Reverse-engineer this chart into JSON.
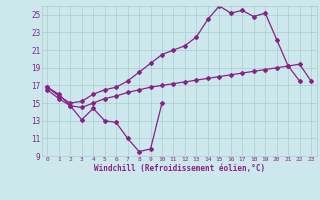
{
  "xlabel": "Windchill (Refroidissement éolien,°C)",
  "bg_color": "#cce8ec",
  "line_color": "#882288",
  "grid_color": "#aacccc",
  "xlim": [
    -0.5,
    23.5
  ],
  "ylim": [
    9,
    26
  ],
  "yticks": [
    9,
    11,
    13,
    15,
    17,
    19,
    21,
    23,
    25
  ],
  "xticks": [
    0,
    1,
    2,
    3,
    4,
    5,
    6,
    7,
    8,
    9,
    10,
    11,
    12,
    13,
    14,
    15,
    16,
    17,
    18,
    19,
    20,
    21,
    22,
    23
  ],
  "line1_x": [
    0,
    1,
    2,
    3,
    4,
    5,
    6,
    7,
    8,
    9,
    10
  ],
  "line1_y": [
    16.8,
    16.0,
    14.7,
    13.1,
    14.4,
    13.0,
    12.8,
    11.0,
    9.5,
    9.8,
    15.0
  ],
  "line2_x": [
    0,
    1,
    2,
    3,
    4,
    5,
    6,
    7,
    8,
    9,
    10,
    11,
    12,
    13,
    14,
    15,
    16,
    17,
    18,
    19,
    20,
    21,
    22
  ],
  "line2_y": [
    16.8,
    15.8,
    15.0,
    15.2,
    16.0,
    16.5,
    16.8,
    17.5,
    18.5,
    19.5,
    20.5,
    21.0,
    21.5,
    22.5,
    24.5,
    26.0,
    25.2,
    25.5,
    24.8,
    25.2,
    22.2,
    19.2,
    17.5
  ],
  "line3_x": [
    0,
    1,
    2,
    3,
    4,
    5,
    6,
    7,
    8,
    9,
    10,
    11,
    12,
    13,
    14,
    15,
    16,
    17,
    18,
    19,
    20,
    21,
    22,
    23
  ],
  "line3_y": [
    16.5,
    15.5,
    14.7,
    14.5,
    15.0,
    15.5,
    15.8,
    16.2,
    16.5,
    16.8,
    17.0,
    17.2,
    17.4,
    17.6,
    17.8,
    18.0,
    18.2,
    18.4,
    18.6,
    18.8,
    19.0,
    19.2,
    19.4,
    17.5
  ]
}
